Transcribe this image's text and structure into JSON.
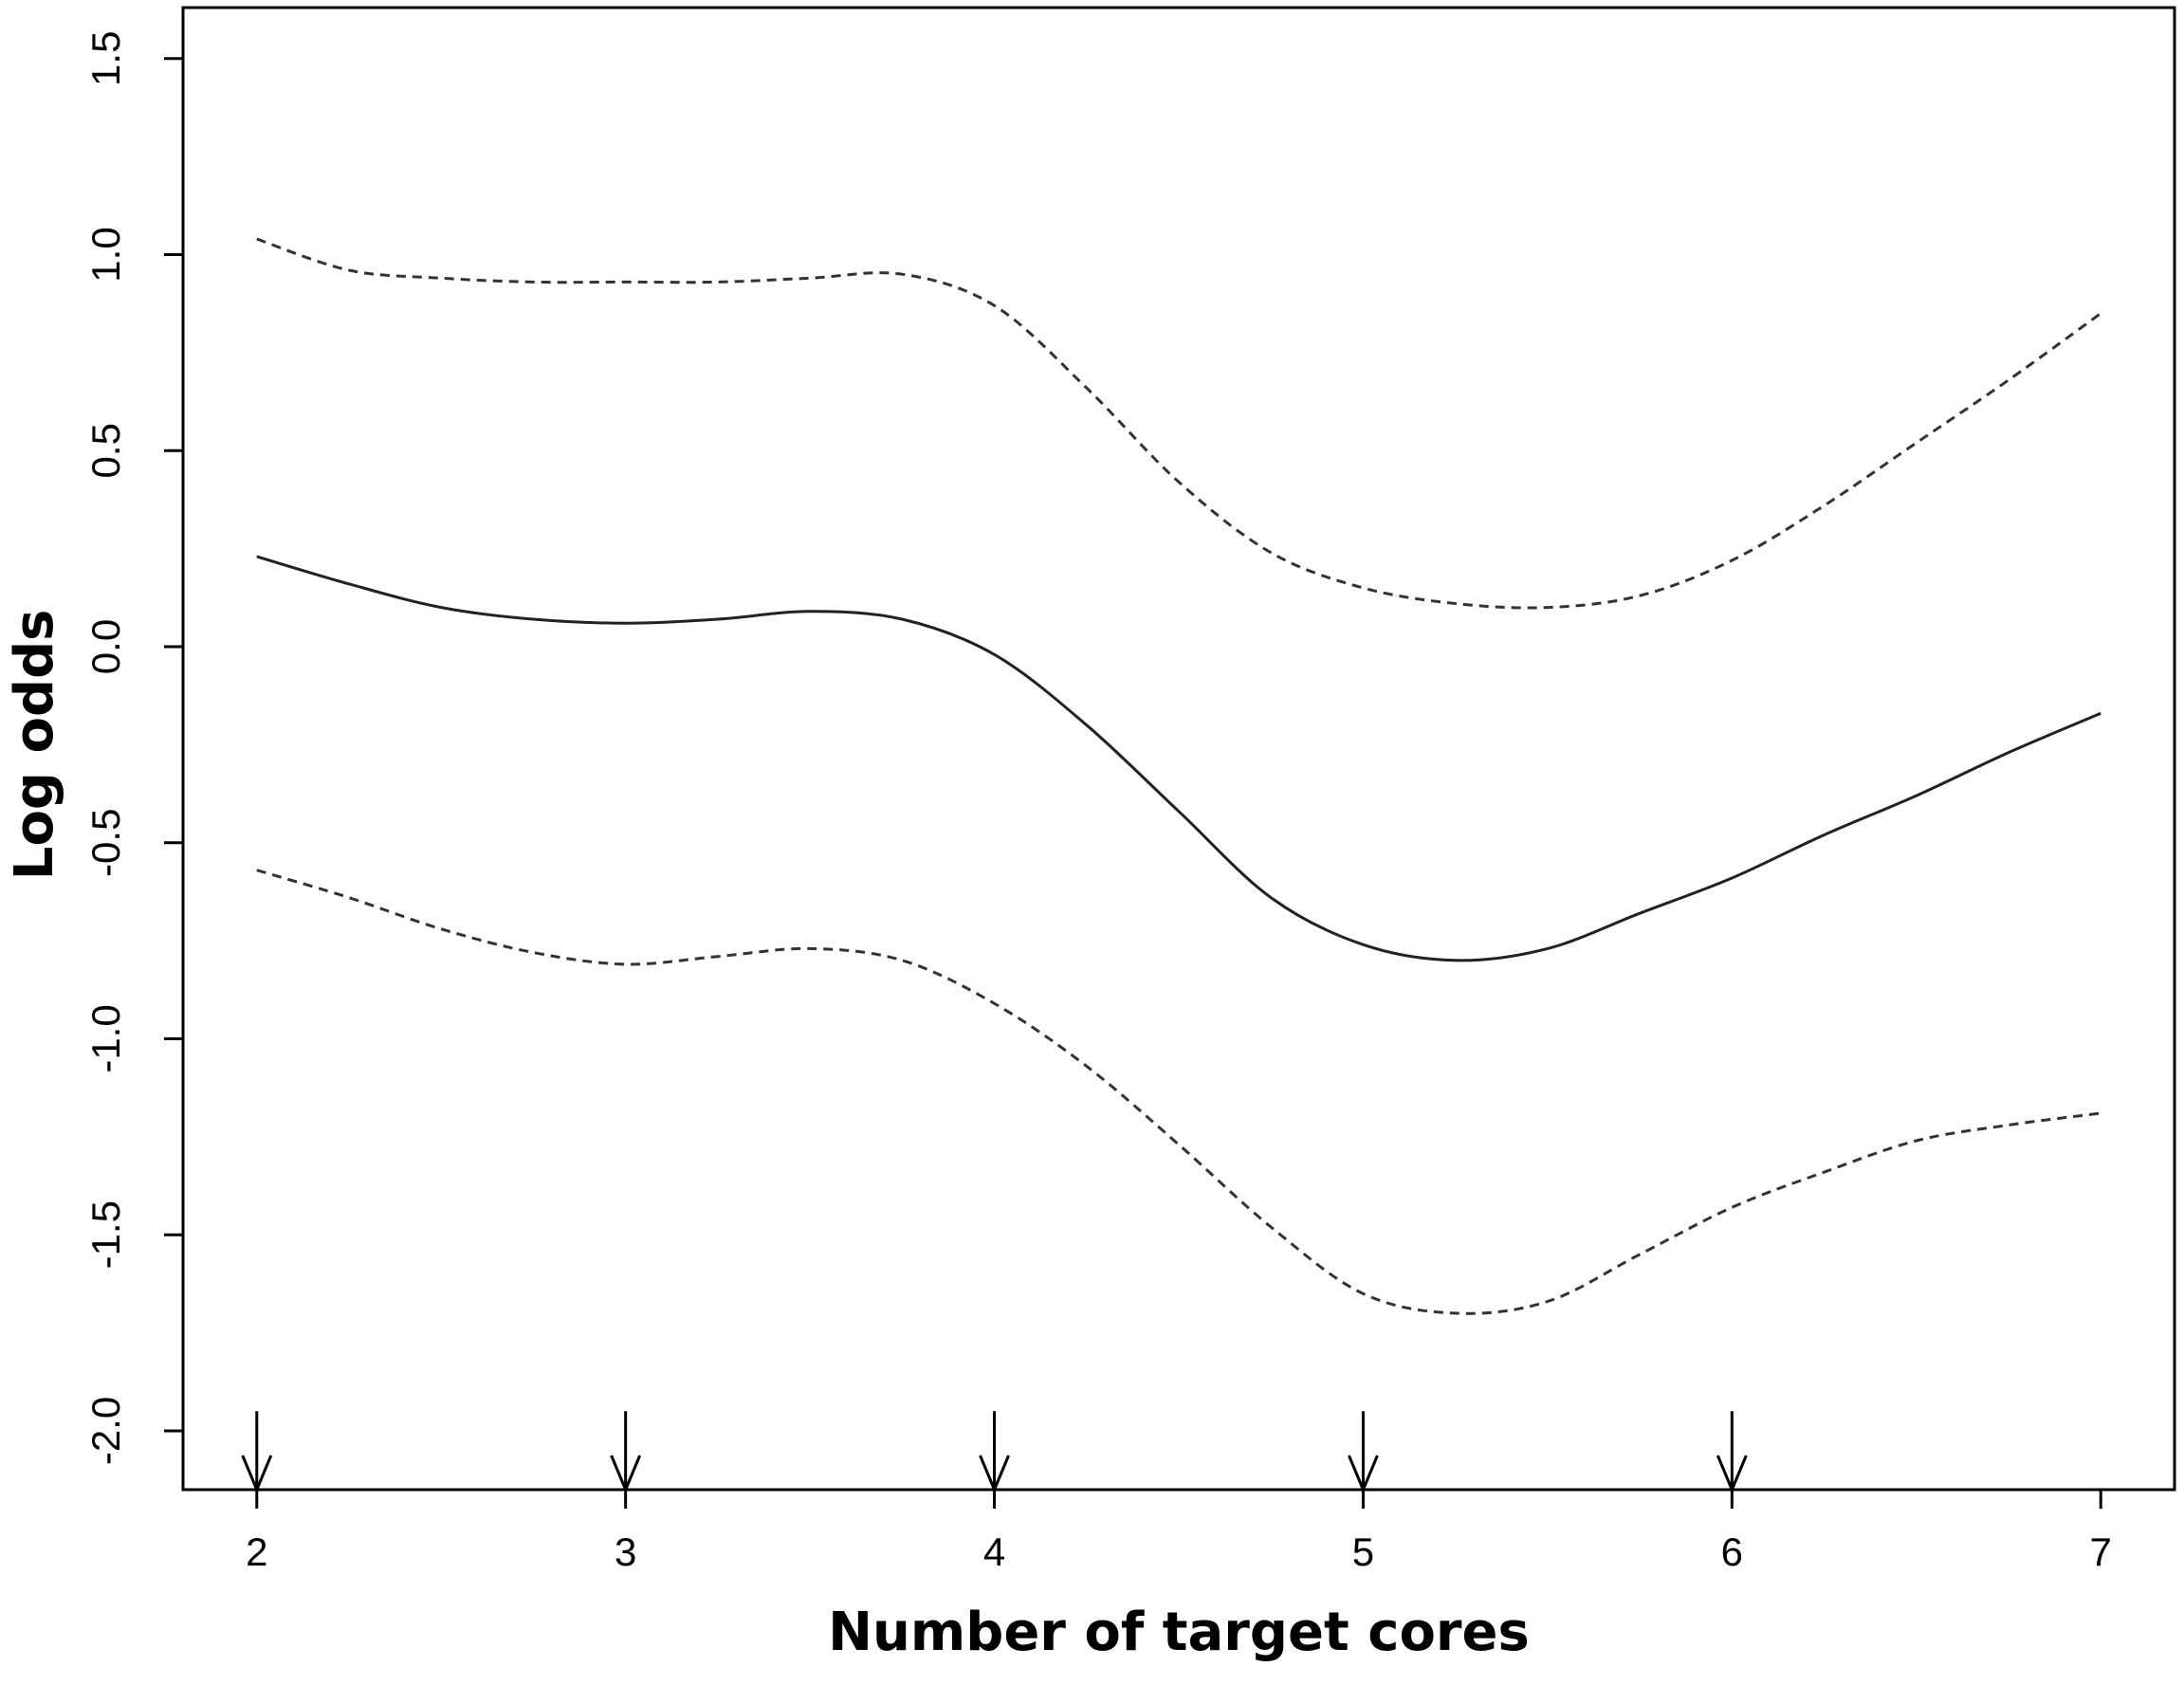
{
  "chart_data": {
    "type": "line",
    "title": "",
    "xlabel": "Number of target cores",
    "ylabel": "Log odds",
    "xlim": [
      1.8,
      7.2
    ],
    "ylim": [
      -2.15,
      1.63
    ],
    "x_ticks": [
      2,
      3,
      4,
      5,
      6,
      7
    ],
    "y_ticks": [
      -2.0,
      -1.5,
      -1.0,
      -0.5,
      0.0,
      0.5,
      1.0,
      1.5
    ],
    "x_tick_labels": [
      "2",
      "3",
      "4",
      "5",
      "6",
      "7"
    ],
    "y_tick_labels": [
      "-2.0",
      "-1.5",
      "-1.0",
      "-0.5",
      "0.0",
      "0.5",
      "1.0",
      "1.5"
    ],
    "grid": false,
    "legend": "none",
    "knot_markers": {
      "style": "down-arrow",
      "x": [
        2,
        3,
        4,
        5,
        6
      ],
      "y_top": -1.95,
      "y_tip": -2.15
    },
    "x": [
      2.0,
      2.25,
      2.5,
      2.75,
      3.0,
      3.25,
      3.5,
      3.75,
      4.0,
      4.25,
      4.5,
      4.75,
      5.0,
      5.25,
      5.5,
      5.75,
      6.0,
      6.25,
      6.5,
      6.75,
      7.0
    ],
    "series": [
      {
        "style": "solid",
        "values": [
          0.23,
          0.16,
          0.1,
          0.07,
          0.06,
          0.07,
          0.09,
          0.07,
          -0.02,
          -0.2,
          -0.42,
          -0.64,
          -0.76,
          -0.8,
          -0.77,
          -0.68,
          -0.59,
          -0.48,
          -0.38,
          -0.27,
          -0.17
        ]
      },
      {
        "style": "dashed",
        "values": [
          1.04,
          0.96,
          0.94,
          0.93,
          0.93,
          0.93,
          0.94,
          0.95,
          0.87,
          0.66,
          0.42,
          0.24,
          0.15,
          0.11,
          0.1,
          0.13,
          0.22,
          0.36,
          0.52,
          0.68,
          0.85
        ]
      },
      {
        "style": "dashed",
        "values": [
          -0.57,
          -0.64,
          -0.72,
          -0.78,
          -0.81,
          -0.79,
          -0.77,
          -0.8,
          -0.91,
          -1.07,
          -1.27,
          -1.48,
          -1.65,
          -1.7,
          -1.67,
          -1.55,
          -1.43,
          -1.34,
          -1.26,
          -1.22,
          -1.19
        ]
      }
    ]
  }
}
